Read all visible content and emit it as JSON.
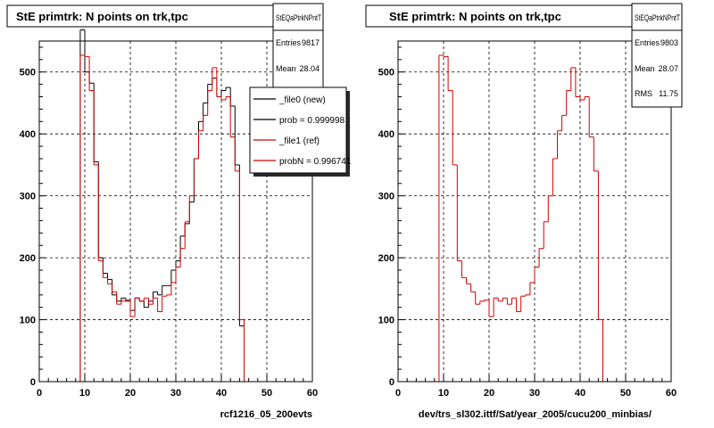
{
  "chart_data": [
    {
      "type": "histogram",
      "title": "StE primtrk: N points on trk,tpc",
      "xlabel": "rcf1216_05_200evts",
      "xlim": [
        0,
        60
      ],
      "ylim": [
        0,
        550
      ],
      "xticks": [
        0,
        10,
        20,
        30,
        40,
        50,
        60
      ],
      "yticks": [
        0,
        100,
        200,
        300,
        400,
        500
      ],
      "grid": true,
      "bin_width": 1,
      "stats": {
        "name": "StEQaPtrkNPntT",
        "rows": [
          {
            "label": "Entries",
            "value": "9817"
          },
          {
            "label": "Mean",
            "value": "28.04"
          }
        ]
      },
      "legend": {
        "placement": "top-right",
        "entries": [
          {
            "label": "_file0 (new)",
            "color": "#000000"
          },
          {
            "label": "prob = 0.999998",
            "color": "#000000"
          },
          {
            "label": "_file1 (ref)",
            "color": "#d40000"
          },
          {
            "label": "probN = 0.996741",
            "color": "#d40000"
          }
        ]
      },
      "series": [
        {
          "name": "_file0 (new)",
          "color": "#000000",
          "x": [
            9,
            10,
            11,
            12,
            13,
            14,
            15,
            16,
            17,
            18,
            19,
            20,
            21,
            22,
            23,
            24,
            25,
            26,
            27,
            28,
            29,
            30,
            31,
            32,
            33,
            34,
            35,
            36,
            37,
            38,
            39,
            40,
            41,
            42,
            43,
            44
          ],
          "values": [
            568,
            500,
            482,
            355,
            200,
            175,
            165,
            140,
            130,
            135,
            130,
            115,
            135,
            130,
            120,
            130,
            145,
            140,
            155,
            155,
            180,
            195,
            235,
            255,
            290,
            360,
            420,
            450,
            480,
            490,
            460,
            470,
            475,
            445,
            350,
            90
          ]
        },
        {
          "name": "_file1 (ref)",
          "color": "#d40000",
          "x": [
            9,
            10,
            11,
            12,
            13,
            14,
            15,
            16,
            17,
            18,
            19,
            20,
            21,
            22,
            23,
            24,
            25,
            26,
            27,
            28,
            29,
            30,
            31,
            32,
            33,
            34,
            35,
            36,
            37,
            38,
            39,
            40,
            41,
            42,
            43,
            44
          ],
          "values": [
            527,
            525,
            470,
            350,
            195,
            168,
            158,
            145,
            125,
            130,
            132,
            105,
            135,
            130,
            135,
            125,
            135,
            113,
            138,
            140,
            160,
            185,
            215,
            258,
            300,
            360,
            405,
            430,
            470,
            507,
            460,
            455,
            460,
            395,
            340,
            100
          ]
        }
      ]
    },
    {
      "type": "histogram",
      "title": "StE primtrk: N points on trk,tpc",
      "xlabel": "dev/trs_sl302.ittf/Sat/year_2005/cucu200_minbias/",
      "xlim": [
        0,
        60
      ],
      "ylim": [
        0,
        550
      ],
      "xticks": [
        0,
        10,
        20,
        30,
        40,
        50,
        60
      ],
      "yticks": [
        0,
        100,
        200,
        300,
        400,
        500
      ],
      "grid": true,
      "bin_width": 1,
      "stats": {
        "name": "StEQaPtrkNPntT",
        "rows": [
          {
            "label": "Entries",
            "value": "9803"
          },
          {
            "label": "Mean",
            "value": "28.07"
          },
          {
            "label": "RMS",
            "value": "11.75"
          }
        ]
      },
      "series": [
        {
          "name": "",
          "color": "#d40000",
          "x": [
            9,
            10,
            11,
            12,
            13,
            14,
            15,
            16,
            17,
            18,
            19,
            20,
            21,
            22,
            23,
            24,
            25,
            26,
            27,
            28,
            29,
            30,
            31,
            32,
            33,
            34,
            35,
            36,
            37,
            38,
            39,
            40,
            41,
            42,
            43,
            44
          ],
          "values": [
            527,
            525,
            470,
            350,
            195,
            168,
            158,
            145,
            125,
            130,
            132,
            105,
            135,
            130,
            135,
            125,
            135,
            113,
            138,
            140,
            160,
            185,
            215,
            258,
            300,
            360,
            405,
            430,
            470,
            507,
            460,
            455,
            460,
            395,
            340,
            100
          ]
        }
      ]
    }
  ]
}
